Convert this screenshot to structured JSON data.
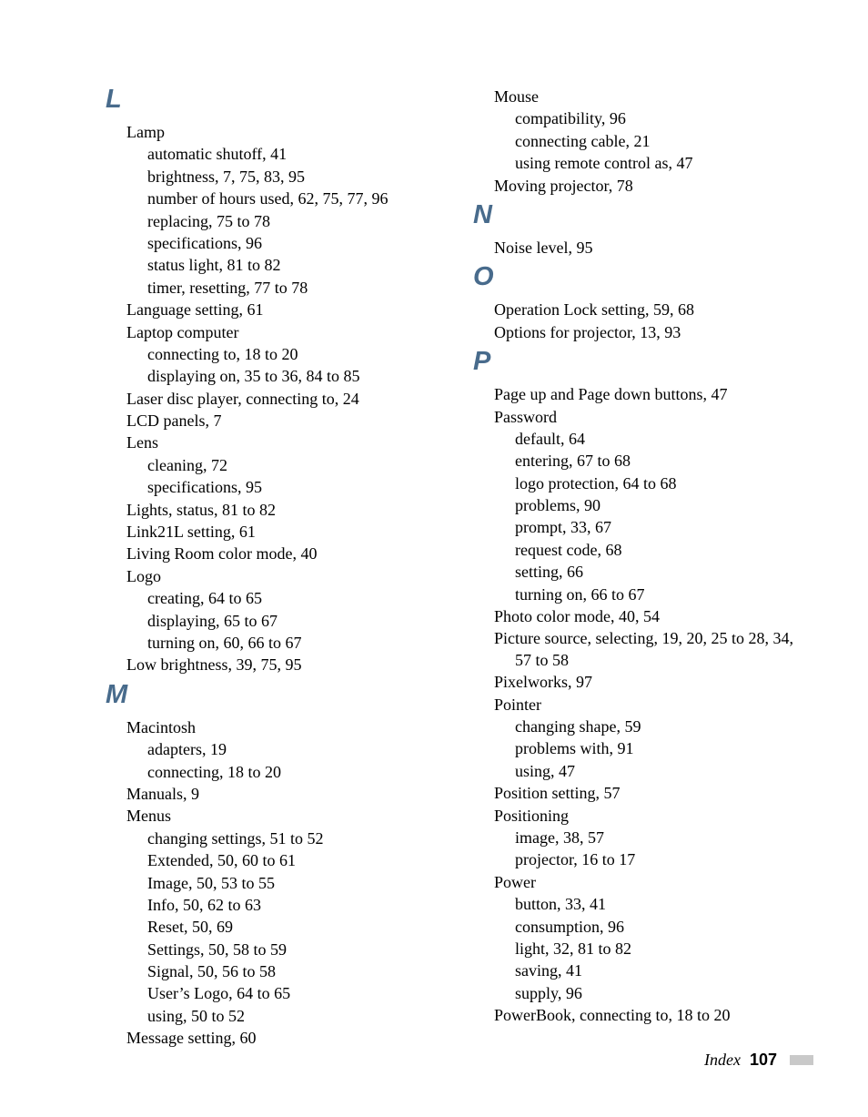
{
  "colors": {
    "heading": "#486b8c",
    "text": "#000000",
    "background": "#ffffff",
    "footer_bar": "#c9c9c9"
  },
  "typography": {
    "body_font": "Garamond/serif",
    "body_size_pt": 13,
    "heading_font": "Arial/sans-serif bold italic",
    "heading_size_pt": 22
  },
  "left_column": [
    {
      "type": "letter",
      "text": "L"
    },
    {
      "type": "entry",
      "text": "Lamp"
    },
    {
      "type": "sub",
      "text": "automatic shutoff, 41"
    },
    {
      "type": "sub",
      "text": "brightness, 7, 75, 83, 95"
    },
    {
      "type": "sub",
      "text": "number of hours used, 62, 75, 77, 96"
    },
    {
      "type": "sub",
      "text": "replacing, 75 to 78"
    },
    {
      "type": "sub",
      "text": "specifications, 96"
    },
    {
      "type": "sub",
      "text": "status light, 81 to 82"
    },
    {
      "type": "sub",
      "text": "timer, resetting, 77 to 78"
    },
    {
      "type": "entry",
      "text": "Language setting, 61"
    },
    {
      "type": "entry",
      "text": "Laptop computer"
    },
    {
      "type": "sub",
      "text": "connecting to, 18 to 20"
    },
    {
      "type": "sub",
      "text": "displaying on, 35 to 36, 84 to 85"
    },
    {
      "type": "entry",
      "text": "Laser disc player, connecting to, 24"
    },
    {
      "type": "entry",
      "text": "LCD panels, 7"
    },
    {
      "type": "entry",
      "text": "Lens"
    },
    {
      "type": "sub",
      "text": "cleaning, 72"
    },
    {
      "type": "sub",
      "text": "specifications, 95"
    },
    {
      "type": "entry",
      "text": "Lights, status, 81 to 82"
    },
    {
      "type": "entry",
      "text": "Link21L setting, 61"
    },
    {
      "type": "entry",
      "text": "Living Room color mode, 40"
    },
    {
      "type": "entry",
      "text": "Logo"
    },
    {
      "type": "sub",
      "text": "creating, 64 to 65"
    },
    {
      "type": "sub",
      "text": "displaying, 65 to 67"
    },
    {
      "type": "sub",
      "text": "turning on, 60, 66 to 67"
    },
    {
      "type": "entry",
      "text": "Low brightness, 39, 75, 95"
    },
    {
      "type": "letter",
      "text": "M"
    },
    {
      "type": "entry",
      "text": "Macintosh"
    },
    {
      "type": "sub",
      "text": "adapters, 19"
    },
    {
      "type": "sub",
      "text": "connecting, 18 to 20"
    },
    {
      "type": "entry",
      "text": "Manuals, 9"
    },
    {
      "type": "entry",
      "text": "Menus"
    },
    {
      "type": "sub",
      "text": "changing settings, 51 to 52"
    },
    {
      "type": "sub",
      "text": "Extended, 50, 60 to 61"
    },
    {
      "type": "sub",
      "text": "Image, 50, 53 to 55"
    },
    {
      "type": "sub",
      "text": "Info, 50, 62 to 63"
    },
    {
      "type": "sub",
      "text": "Reset, 50, 69"
    },
    {
      "type": "sub",
      "text": "Settings, 50, 58 to 59"
    },
    {
      "type": "sub",
      "text": "Signal, 50, 56 to 58"
    },
    {
      "type": "sub",
      "text": "User’s Logo, 64 to 65"
    },
    {
      "type": "sub",
      "text": "using, 50 to 52"
    },
    {
      "type": "entry",
      "text": "Message setting, 60"
    }
  ],
  "right_column": [
    {
      "type": "entry",
      "text": "Mouse"
    },
    {
      "type": "sub",
      "text": "compatibility, 96"
    },
    {
      "type": "sub",
      "text": "connecting cable, 21"
    },
    {
      "type": "sub",
      "text": "using remote control as, 47"
    },
    {
      "type": "entry",
      "text": "Moving projector, 78"
    },
    {
      "type": "letter",
      "text": "N"
    },
    {
      "type": "entry",
      "text": "Noise level, 95"
    },
    {
      "type": "letter",
      "text": "O"
    },
    {
      "type": "entry",
      "text": "Operation Lock setting, 59, 68"
    },
    {
      "type": "entry",
      "text": "Options for projector, 13, 93"
    },
    {
      "type": "letter",
      "text": "P"
    },
    {
      "type": "entry",
      "text": "Page up and Page down buttons, 47"
    },
    {
      "type": "entry",
      "text": "Password"
    },
    {
      "type": "sub",
      "text": "default, 64"
    },
    {
      "type": "sub",
      "text": "entering, 67 to 68"
    },
    {
      "type": "sub",
      "text": "logo protection, 64 to 68"
    },
    {
      "type": "sub",
      "text": "problems, 90"
    },
    {
      "type": "sub",
      "text": "prompt, 33, 67"
    },
    {
      "type": "sub",
      "text": "request code, 68"
    },
    {
      "type": "sub",
      "text": "setting, 66"
    },
    {
      "type": "sub",
      "text": "turning on, 66 to 67"
    },
    {
      "type": "entry",
      "text": "Photo color mode, 40, 54"
    },
    {
      "type": "entry",
      "text": "Picture source, selecting, 19, 20, 25 to 28, 34, 57 to 58"
    },
    {
      "type": "entry",
      "text": "Pixelworks, 97"
    },
    {
      "type": "entry",
      "text": "Pointer"
    },
    {
      "type": "sub",
      "text": "changing shape, 59"
    },
    {
      "type": "sub",
      "text": "problems with, 91"
    },
    {
      "type": "sub",
      "text": "using, 47"
    },
    {
      "type": "entry",
      "text": "Position setting, 57"
    },
    {
      "type": "entry",
      "text": "Positioning"
    },
    {
      "type": "sub",
      "text": "image, 38, 57"
    },
    {
      "type": "sub",
      "text": "projector, 16 to 17"
    },
    {
      "type": "entry",
      "text": "Power"
    },
    {
      "type": "sub",
      "text": "button, 33, 41"
    },
    {
      "type": "sub",
      "text": "consumption, 96"
    },
    {
      "type": "sub",
      "text": "light, 32, 81 to 82"
    },
    {
      "type": "sub",
      "text": "saving, 41"
    },
    {
      "type": "sub",
      "text": "supply, 96"
    },
    {
      "type": "entry",
      "text": "PowerBook, connecting to, 18 to 20"
    }
  ],
  "footer": {
    "label": "Index",
    "page": "107"
  }
}
